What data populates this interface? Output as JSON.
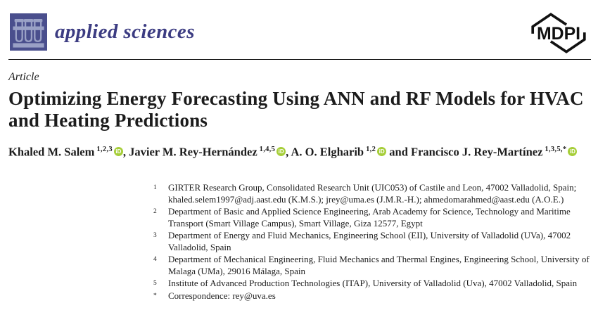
{
  "header": {
    "journal_name": "applied sciences",
    "journal_logo_icon": "test-tubes-icon",
    "publisher_logo_text": "MDPI"
  },
  "article": {
    "type_label": "Article",
    "title": "Optimizing Energy Forecasting Using ANN and RF Models for HVAC and Heating Predictions"
  },
  "authors": [
    {
      "name": "Khaled M. Salem",
      "affiliation_sup": "1,2,3",
      "orcid": true,
      "separator": ", "
    },
    {
      "name": "Javier M. Rey-Hernández",
      "affiliation_sup": "1,4,5",
      "orcid": true,
      "separator": ", "
    },
    {
      "name": "A. O. Elgharib",
      "affiliation_sup": "1,2",
      "orcid": true,
      "separator": " and "
    },
    {
      "name": "Francisco J. Rey-Martínez",
      "affiliation_sup": "1,3,5,*",
      "orcid": true,
      "separator": ""
    }
  ],
  "affiliations": [
    {
      "marker": "1",
      "text": "GIRTER Research Group, Consolidated Research Unit (UIC053) of Castile and Leon, 47002 Valladolid, Spain; khaled.selem1997@adj.aast.edu (K.M.S.); jrey@uma.es (J.M.R.-H.); ahmedomarahmed@aast.edu (A.O.E.)"
    },
    {
      "marker": "2",
      "text": "Department of Basic and Applied Science Engineering, Arab Academy for Science, Technology and Maritime Transport (Smart Village Campus), Smart Village, Giza 12577, Egypt"
    },
    {
      "marker": "3",
      "text": "Department of Energy and Fluid Mechanics, Engineering School (EII), University of Valladolid (UVa), 47002 Valladolid, Spain"
    },
    {
      "marker": "4",
      "text": "Department of Mechanical Engineering, Fluid Mechanics and Thermal Engines, Engineering School, University of Malaga (UMa), 29016 Málaga, Spain"
    },
    {
      "marker": "5",
      "text": "Institute of Advanced Production Technologies (ITAP), University of Valladolid (Uva), 47002 Valladolid, Spain"
    },
    {
      "marker": "*",
      "text": "Correspondence: rey@uva.es"
    }
  ],
  "colors": {
    "logo_bg": "#4a4f8d",
    "logo_glyph": "#9aa1c6",
    "journal_name_color": "#3c3c82",
    "orcid_green": "#a6ce39",
    "text": "#1c1c1c"
  }
}
